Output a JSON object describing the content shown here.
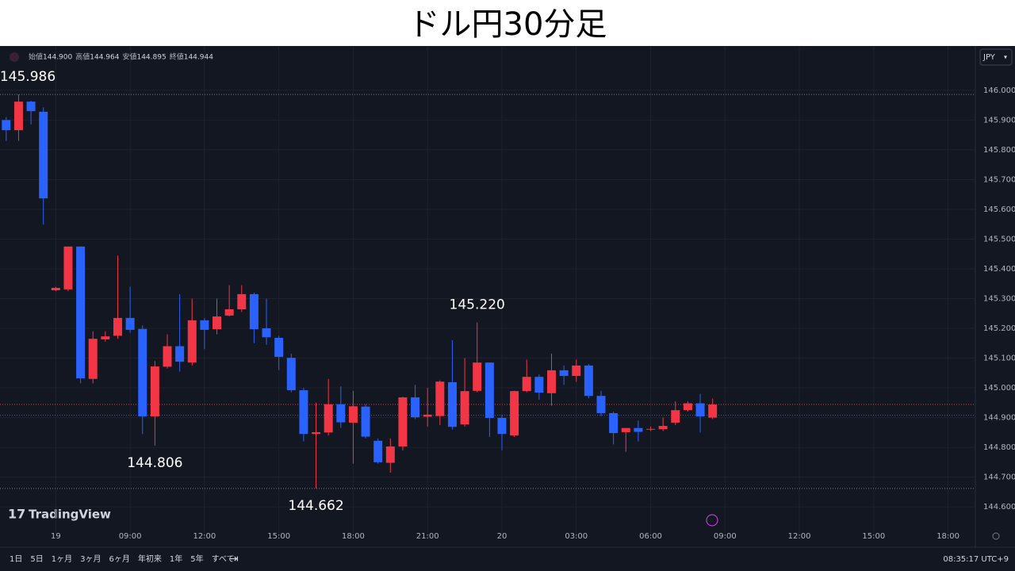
{
  "title": "ドル円30分足",
  "chart_data": {
    "type": "candlestick",
    "x": [
      0,
      1,
      2,
      3,
      4,
      5,
      6,
      7,
      8,
      9,
      10,
      11,
      12,
      13,
      14,
      15,
      16,
      17,
      18,
      19,
      20,
      21,
      22,
      23,
      24,
      25,
      26,
      27,
      28,
      29,
      30,
      31,
      32,
      33,
      34,
      35,
      36,
      37,
      38,
      39,
      40,
      41,
      42,
      43,
      44,
      45,
      46,
      47,
      48,
      49,
      50,
      51,
      52,
      53,
      54,
      55,
      56,
      57
    ],
    "open": [
      145.9,
      145.866,
      145.962,
      145.928,
      145.328,
      145.331,
      145.475,
      145.03,
      145.163,
      145.175,
      145.235,
      145.198,
      144.904,
      145.071,
      145.14,
      145.085,
      145.227,
      145.197,
      145.243,
      145.264,
      145.315,
      145.2,
      145.168,
      145.101,
      144.992,
      144.845,
      144.85,
      144.945,
      144.883,
      144.937,
      144.822,
      144.748,
      144.803,
      144.968,
      144.903,
      144.905,
      145.019,
      144.877,
      144.99,
      145.085,
      144.899,
      144.84,
      144.989,
      145.037,
      144.982,
      145.059,
      145.04,
      145.075,
      144.973,
      144.915,
      144.851,
      144.865,
      144.86,
      144.861,
      144.883,
      144.925,
      144.948,
      144.9
    ],
    "high": [
      145.91,
      145.986,
      145.965,
      145.943,
      145.34,
      145.475,
      145.475,
      145.19,
      145.19,
      145.445,
      145.34,
      145.21,
      145.09,
      145.18,
      145.315,
      145.3,
      145.235,
      145.3,
      145.345,
      145.345,
      145.32,
      145.3,
      145.175,
      145.115,
      145.0,
      144.95,
      145.03,
      145.005,
      144.99,
      144.945,
      144.83,
      144.83,
      144.97,
      145.01,
      145.0,
      145.025,
      145.16,
      145.1,
      145.22,
      145.085,
      144.91,
      144.99,
      145.095,
      145.045,
      145.115,
      145.075,
      145.095,
      145.08,
      144.99,
      144.92,
      144.865,
      144.89,
      144.87,
      144.9,
      144.955,
      144.955,
      144.98,
      144.964
    ],
    "low": [
      145.83,
      145.83,
      145.885,
      145.549,
      145.325,
      145.325,
      145.015,
      145.015,
      145.155,
      145.165,
      145.185,
      144.845,
      144.806,
      145.065,
      145.055,
      145.075,
      145.13,
      145.18,
      145.24,
      145.255,
      145.15,
      145.145,
      145.06,
      144.985,
      144.82,
      144.662,
      144.84,
      144.865,
      144.745,
      144.83,
      144.745,
      144.715,
      144.79,
      144.895,
      144.87,
      144.875,
      144.86,
      144.87,
      144.985,
      144.835,
      144.79,
      144.835,
      144.985,
      144.96,
      144.94,
      145.01,
      145.02,
      144.965,
      144.905,
      144.81,
      144.785,
      144.82,
      144.855,
      144.855,
      144.875,
      144.92,
      144.85,
      144.895
    ],
    "close": [
      145.866,
      145.962,
      145.93,
      145.637,
      145.336,
      145.475,
      145.032,
      145.165,
      145.173,
      145.235,
      145.195,
      144.904,
      145.072,
      145.14,
      145.088,
      145.227,
      145.195,
      145.24,
      145.264,
      145.315,
      145.197,
      145.17,
      145.104,
      144.992,
      144.845,
      144.851,
      144.945,
      144.884,
      144.938,
      144.836,
      144.75,
      144.803,
      144.968,
      144.901,
      144.91,
      145.021,
      144.869,
      144.989,
      145.085,
      144.899,
      144.845,
      144.989,
      145.037,
      144.984,
      145.059,
      145.04,
      145.075,
      144.973,
      144.915,
      144.848,
      144.865,
      144.852,
      144.862,
      144.872,
      144.925,
      144.948,
      144.904,
      144.944
    ],
    "up_color": "#f23645",
    "down_color": "#2962ff",
    "ylim": [
      144.531,
      146.149
    ],
    "yticks": [
      {
        "value": 146.0,
        "label": "146.000"
      },
      {
        "value": 145.9,
        "label": "145.900"
      },
      {
        "value": 145.8,
        "label": "145.800"
      },
      {
        "value": 145.7,
        "label": "145.700"
      },
      {
        "value": 145.6,
        "label": "145.600"
      },
      {
        "value": 145.5,
        "label": "145.500"
      },
      {
        "value": 145.4,
        "label": "145.400"
      },
      {
        "value": 145.3,
        "label": "145.300"
      },
      {
        "value": 145.2,
        "label": "145.200"
      },
      {
        "value": 145.1,
        "label": "145.100"
      },
      {
        "value": 145.0,
        "label": "145.000"
      },
      {
        "value": 144.9,
        "label": "144.900"
      },
      {
        "value": 144.8,
        "label": "144.800"
      },
      {
        "value": 144.7,
        "label": "144.700"
      },
      {
        "value": 144.6,
        "label": "144.600"
      }
    ],
    "xlim": [
      -0.5,
      78.2
    ],
    "xticks": [
      {
        "value": 4,
        "label": "19"
      },
      {
        "value": 10,
        "label": "09:00"
      },
      {
        "value": 16,
        "label": "12:00"
      },
      {
        "value": 22,
        "label": "15:00"
      },
      {
        "value": 28,
        "label": "18:00"
      },
      {
        "value": 34,
        "label": "21:00"
      },
      {
        "value": 40,
        "label": "20"
      },
      {
        "value": 46,
        "label": "03:00"
      },
      {
        "value": 52,
        "label": "06:00"
      },
      {
        "value": 58,
        "label": "09:00"
      },
      {
        "value": 64,
        "label": "12:00"
      },
      {
        "value": 70,
        "label": "15:00"
      },
      {
        "value": 76,
        "label": "18:00"
      }
    ],
    "grid": true,
    "annotations": [
      {
        "index": 1,
        "value": 145.986,
        "label": "145.986"
      },
      {
        "index": 12,
        "value": 144.806,
        "label": "144.806"
      },
      {
        "index": 38,
        "value": 145.22,
        "label": "145.220"
      },
      {
        "index": 25,
        "value": 144.662,
        "label": "144.662"
      }
    ],
    "legend": [
      {
        "name": "始値",
        "value": "144.900"
      },
      {
        "name": "高値",
        "value": "144.964"
      },
      {
        "name": "安値",
        "value": "144.895"
      },
      {
        "name": "終値",
        "value": "144.944"
      }
    ],
    "currency": "JPY",
    "brand": "TradingView"
  },
  "toolbar": {
    "ranges": [
      "1日",
      "5日",
      "1ヶ月",
      "3ヶ月",
      "6ヶ月",
      "年初来",
      "1年",
      "5年",
      "すべて"
    ],
    "clock": "08:35:17 UTC+9"
  }
}
